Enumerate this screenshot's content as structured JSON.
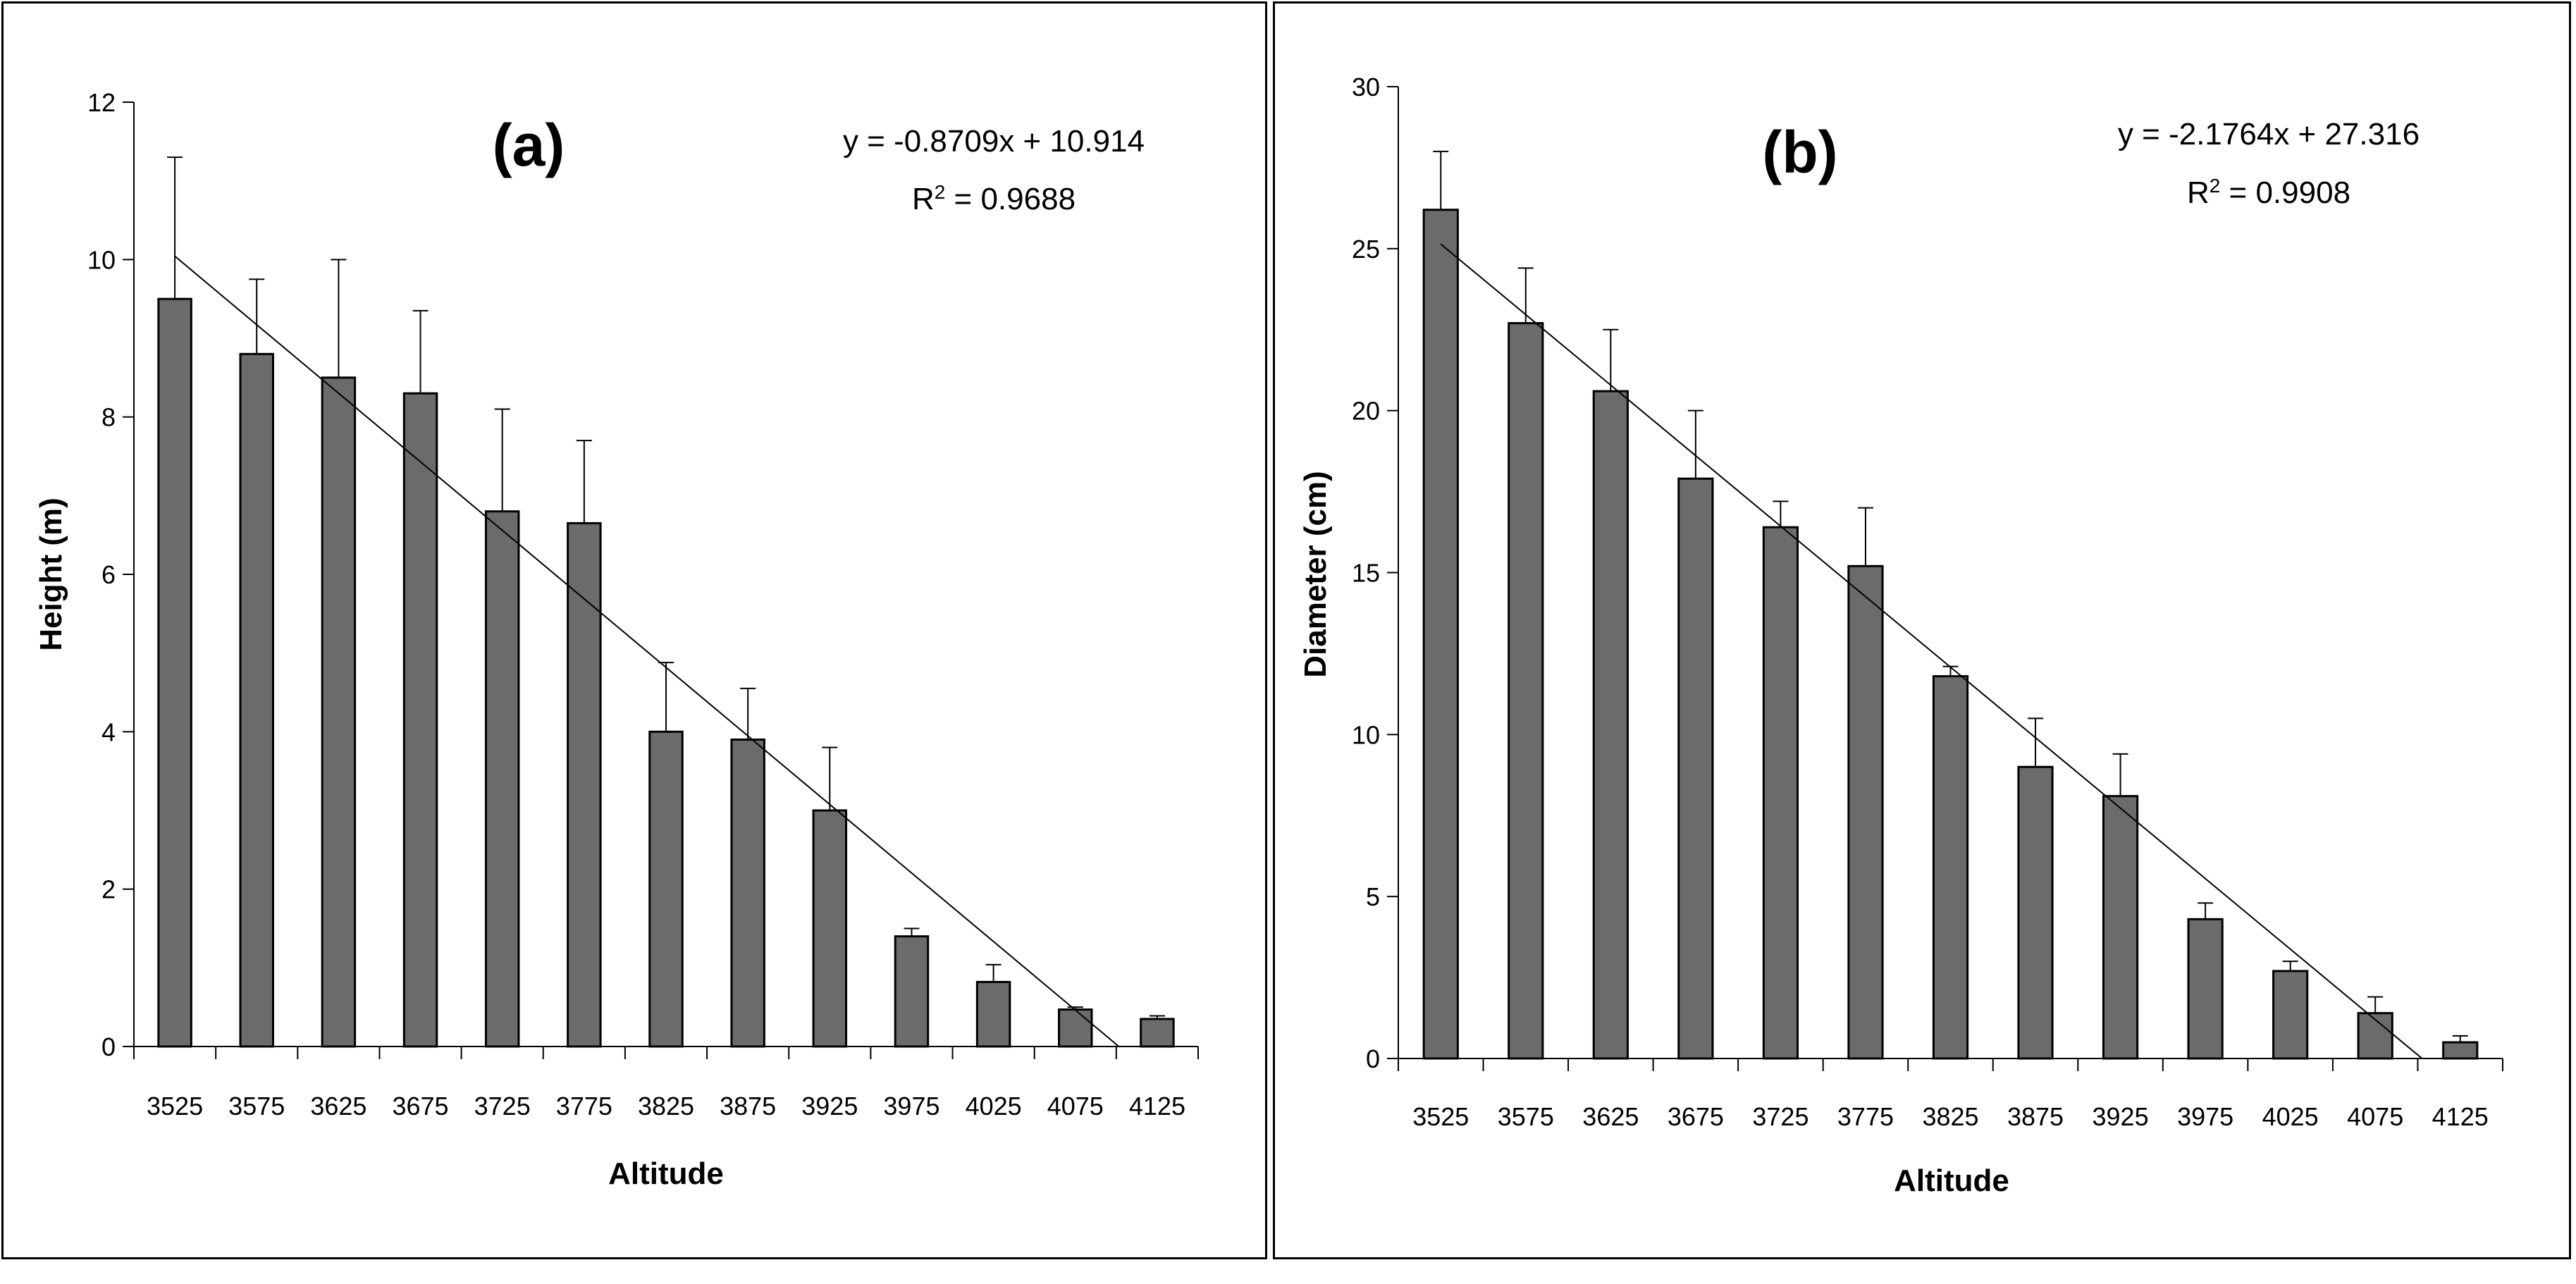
{
  "chart_data": [
    {
      "type": "bar",
      "id": "a",
      "title": "(a)",
      "xlabel": "Altitude",
      "ylabel": "Height (m)",
      "ylim": [
        0,
        12
      ],
      "yticks": [
        "0",
        "2",
        "4",
        "6",
        "8",
        "10",
        "12"
      ],
      "categories": [
        "3525",
        "3575",
        "3625",
        "3675",
        "3725",
        "3775",
        "3825",
        "3875",
        "3925",
        "3975",
        "4025",
        "4075",
        "4125"
      ],
      "values": [
        9.5,
        8.8,
        8.5,
        8.3,
        6.8,
        6.65,
        4.0,
        3.9,
        3.0,
        1.4,
        0.82,
        0.47,
        0.35
      ],
      "errors": [
        1.8,
        0.95,
        1.5,
        1.05,
        1.3,
        1.05,
        0.88,
        0.65,
        0.8,
        0.1,
        0.22,
        0.03,
        0.04
      ],
      "trendline": {
        "slope": -0.8709,
        "intercept": 10.914
      },
      "equation": "y = -0.8709x + 10.914",
      "r2_prefix": "R",
      "r2_sup": "2",
      "r2_value": " = 0.9688",
      "bar_color": "#6b6b6b",
      "grid": false
    },
    {
      "type": "bar",
      "id": "b",
      "title": "(b)",
      "xlabel": "Altitude",
      "ylabel": "Diameter (cm)",
      "ylim": [
        0,
        30
      ],
      "yticks": [
        "0",
        "5",
        "10",
        "15",
        "20",
        "25",
        "30"
      ],
      "categories": [
        "3525",
        "3575",
        "3625",
        "3675",
        "3725",
        "3775",
        "3825",
        "3875",
        "3925",
        "3975",
        "4025",
        "4075",
        "4125"
      ],
      "values": [
        26.2,
        22.7,
        20.6,
        17.9,
        16.4,
        15.2,
        11.8,
        9.0,
        8.1,
        4.3,
        2.7,
        1.4,
        0.5
      ],
      "errors": [
        1.8,
        1.7,
        1.9,
        2.1,
        0.8,
        1.8,
        0.3,
        1.5,
        1.3,
        0.5,
        0.3,
        0.5,
        0.2
      ],
      "trendline": {
        "slope": -2.1764,
        "intercept": 27.316
      },
      "equation": "y = -2.1764x + 27.316",
      "r2_prefix": "R",
      "r2_sup": "2",
      "r2_value": " = 0.9908",
      "bar_color": "#6b6b6b",
      "grid": false
    }
  ]
}
